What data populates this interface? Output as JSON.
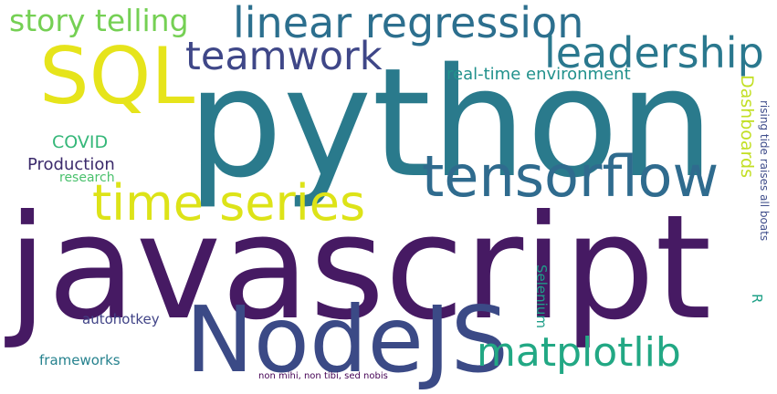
{
  "word_cloud": {
    "background": "#ffffff",
    "words": {
      "python": {
        "text": "python",
        "color": "#2a7a8c"
      },
      "javascript": {
        "text": "javascript",
        "color": "#461a63"
      },
      "nodejs": {
        "text": "NodeJS",
        "color": "#3b4a86"
      },
      "sql": {
        "text": "SQL",
        "color": "#e6e41b"
      },
      "tensorflow": {
        "text": "tensorflow",
        "color": "#2f6b8e"
      },
      "time_series": {
        "text": "time series",
        "color": "#dde318"
      },
      "linear_regression": {
        "text": "linear regression",
        "color": "#2c6f8e"
      },
      "matplotlib": {
        "text": "matplotlib",
        "color": "#22a884"
      },
      "leadership": {
        "text": "leadership",
        "color": "#2a788e"
      },
      "teamwork": {
        "text": "teamwork",
        "color": "#3f4788"
      },
      "story_telling": {
        "text": "story telling",
        "color": "#75d054"
      },
      "real_time_environment": {
        "text": "real-time environment",
        "color": "#21918c"
      },
      "dashboards": {
        "text": "Dashboards",
        "color": "#c2df23"
      },
      "covid": {
        "text": "COVID",
        "color": "#35b779"
      },
      "production": {
        "text": "Production",
        "color": "#3b2a6b"
      },
      "research": {
        "text": "research",
        "color": "#4ac16d"
      },
      "rising_tide": {
        "text": "rising tide raises all boats",
        "color": "#3e4c8a"
      },
      "r": {
        "text": "R",
        "color": "#1fa187"
      },
      "selenium": {
        "text": "Selenium",
        "color": "#1f9e89"
      },
      "autohotkey": {
        "text": "autohotkey",
        "color": "#414487"
      },
      "frameworks": {
        "text": "frameworks",
        "color": "#26828e"
      },
      "latin_phrase": {
        "text": "non mihi, non tibi, sed nobis",
        "color": "#440154"
      }
    }
  }
}
